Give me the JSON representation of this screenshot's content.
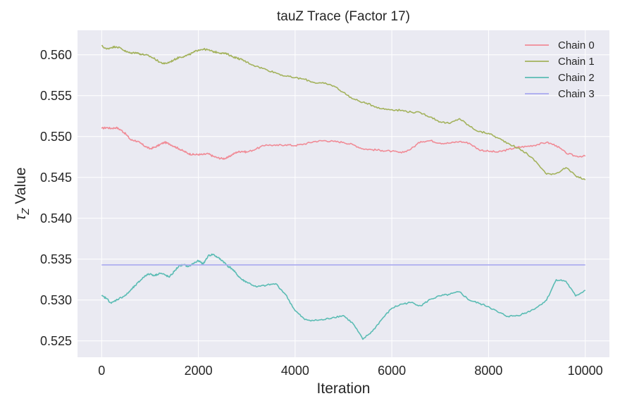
{
  "chart_data": {
    "type": "line",
    "title": "tauZ Trace (Factor 17)",
    "xlabel": "Iteration",
    "ylabel": "τ_Z Value",
    "ylabel_parts": {
      "symbol": "τ",
      "subscript": "Z",
      "rest": "Value"
    },
    "xlim": [
      -500,
      10500
    ],
    "ylim": [
      0.523,
      0.563
    ],
    "xticks": [
      0,
      2000,
      4000,
      6000,
      8000,
      10000
    ],
    "xtick_labels": [
      "0",
      "2000",
      "4000",
      "6000",
      "8000",
      "10000"
    ],
    "yticks": [
      0.525,
      0.53,
      0.535,
      0.54,
      0.545,
      0.55,
      0.555,
      0.56
    ],
    "ytick_labels": [
      "0.525",
      "0.530",
      "0.535",
      "0.540",
      "0.545",
      "0.550",
      "0.555",
      "0.560"
    ],
    "grid": true,
    "legend_position": "top-right",
    "colors": {
      "background": "#eaeaf2",
      "grid": "#ffffff",
      "chain0": "#f08b96",
      "chain1": "#a3b25c",
      "chain2": "#5bbcb4",
      "chain3": "#a9a9f0"
    },
    "series": [
      {
        "name": "Chain 0",
        "color": "#f08b96",
        "x": [
          0,
          100,
          200,
          300,
          400,
          500,
          600,
          700,
          800,
          900,
          1000,
          1100,
          1200,
          1300,
          1400,
          1500,
          1600,
          1700,
          1800,
          1900,
          2000,
          2100,
          2200,
          2300,
          2400,
          2500,
          2600,
          2700,
          2800,
          2900,
          3000,
          3200,
          3400,
          3600,
          3800,
          4000,
          4200,
          4400,
          4600,
          4800,
          5000,
          5200,
          5400,
          5600,
          5800,
          6000,
          6200,
          6400,
          6600,
          6800,
          7000,
          7200,
          7400,
          7600,
          7800,
          8000,
          8200,
          8400,
          8600,
          8800,
          9000,
          9200,
          9400,
          9600,
          9800,
          10000
        ],
        "values": [
          0.551,
          0.5511,
          0.551,
          0.5511,
          0.5508,
          0.5503,
          0.5496,
          0.5495,
          0.5492,
          0.5488,
          0.5485,
          0.5487,
          0.549,
          0.5493,
          0.5491,
          0.5488,
          0.5485,
          0.5482,
          0.5479,
          0.5478,
          0.5478,
          0.5478,
          0.5479,
          0.5476,
          0.5474,
          0.5473,
          0.5474,
          0.5478,
          0.5481,
          0.5482,
          0.5481,
          0.5485,
          0.549,
          0.5489,
          0.549,
          0.5489,
          0.5491,
          0.5494,
          0.5495,
          0.5494,
          0.5493,
          0.549,
          0.5485,
          0.5484,
          0.5483,
          0.5482,
          0.548,
          0.5485,
          0.5494,
          0.5495,
          0.5492,
          0.5492,
          0.5494,
          0.5492,
          0.5484,
          0.5482,
          0.5481,
          0.5484,
          0.5487,
          0.5488,
          0.549,
          0.5493,
          0.5489,
          0.548,
          0.5476,
          0.5476
        ]
      },
      {
        "name": "Chain 1",
        "color": "#a3b25c",
        "x": [
          0,
          100,
          200,
          300,
          400,
          500,
          600,
          700,
          800,
          900,
          1000,
          1100,
          1200,
          1300,
          1400,
          1500,
          1600,
          1700,
          1800,
          1900,
          2000,
          2100,
          2200,
          2300,
          2400,
          2500,
          2600,
          2700,
          2800,
          2900,
          3000,
          3200,
          3400,
          3600,
          3800,
          4000,
          4200,
          4400,
          4600,
          4800,
          5000,
          5200,
          5400,
          5600,
          5800,
          6000,
          6200,
          6400,
          6600,
          6800,
          7000,
          7200,
          7400,
          7600,
          7800,
          8000,
          8200,
          8400,
          8600,
          8800,
          9000,
          9200,
          9400,
          9600,
          9800,
          10000
        ],
        "values": [
          0.5611,
          0.5607,
          0.5609,
          0.561,
          0.5608,
          0.5604,
          0.5602,
          0.5603,
          0.5601,
          0.56,
          0.5598,
          0.5595,
          0.5591,
          0.5589,
          0.5591,
          0.5594,
          0.5597,
          0.5598,
          0.56,
          0.5603,
          0.5606,
          0.5607,
          0.5606,
          0.5604,
          0.5603,
          0.5602,
          0.5601,
          0.5598,
          0.5596,
          0.5594,
          0.5591,
          0.5586,
          0.5582,
          0.5578,
          0.5574,
          0.5572,
          0.557,
          0.5566,
          0.5565,
          0.5562,
          0.5554,
          0.5546,
          0.5542,
          0.5538,
          0.5534,
          0.5533,
          0.5532,
          0.553,
          0.5529,
          0.5524,
          0.5518,
          0.5516,
          0.5522,
          0.5513,
          0.5506,
          0.5504,
          0.5498,
          0.5492,
          0.5486,
          0.5479,
          0.5468,
          0.5454,
          0.5455,
          0.5462,
          0.5452,
          0.5447
        ]
      },
      {
        "name": "Chain 2",
        "color": "#5bbcb4",
        "x": [
          0,
          100,
          200,
          300,
          400,
          500,
          600,
          700,
          800,
          900,
          1000,
          1100,
          1200,
          1300,
          1400,
          1500,
          1600,
          1700,
          1800,
          1900,
          2000,
          2100,
          2200,
          2300,
          2400,
          2500,
          2600,
          2700,
          2800,
          2900,
          3000,
          3200,
          3400,
          3600,
          3800,
          4000,
          4200,
          4400,
          4600,
          4800,
          5000,
          5200,
          5400,
          5600,
          5800,
          6000,
          6200,
          6400,
          6600,
          6800,
          7000,
          7200,
          7400,
          7600,
          7800,
          8000,
          8200,
          8400,
          8600,
          8800,
          9000,
          9200,
          9400,
          9600,
          9800,
          10000
        ],
        "values": [
          0.5305,
          0.5302,
          0.5296,
          0.53,
          0.5303,
          0.5306,
          0.5312,
          0.5318,
          0.5324,
          0.533,
          0.5332,
          0.533,
          0.5333,
          0.5331,
          0.5328,
          0.5335,
          0.5342,
          0.5343,
          0.5341,
          0.5345,
          0.5348,
          0.5344,
          0.5354,
          0.5356,
          0.5352,
          0.5348,
          0.5342,
          0.5338,
          0.5331,
          0.5325,
          0.5322,
          0.5316,
          0.5318,
          0.532,
          0.5307,
          0.5287,
          0.5276,
          0.5275,
          0.5276,
          0.5279,
          0.5281,
          0.5271,
          0.5252,
          0.5262,
          0.5277,
          0.529,
          0.5295,
          0.5297,
          0.5293,
          0.5301,
          0.5305,
          0.5307,
          0.531,
          0.53,
          0.5296,
          0.5292,
          0.5285,
          0.528,
          0.5281,
          0.5285,
          0.5291,
          0.53,
          0.5325,
          0.5323,
          0.5305,
          0.5312
        ]
      },
      {
        "name": "Chain 3",
        "color": "#a9a9f0",
        "x": [
          0,
          10000
        ],
        "values": [
          0.5343,
          0.5343
        ]
      }
    ]
  }
}
